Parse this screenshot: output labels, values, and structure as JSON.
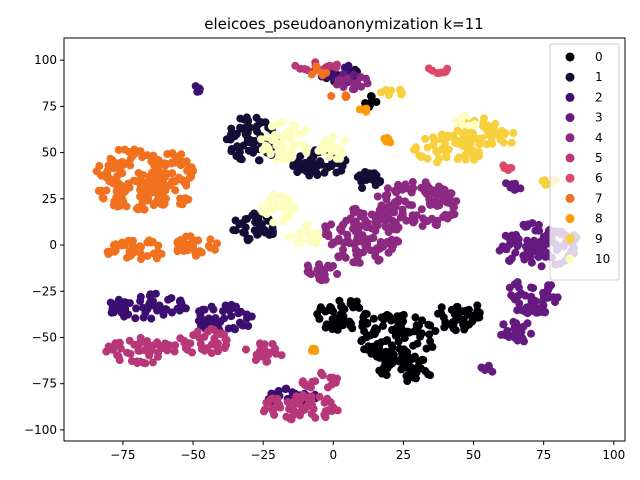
{
  "chart_data": {
    "type": "scatter",
    "title": "eleicoes_pseudoanonymization k=11",
    "xlabel": "",
    "ylabel": "",
    "xlim": [
      -96,
      104
    ],
    "ylim": [
      -106,
      112
    ],
    "xticks": [
      -75,
      -50,
      -25,
      0,
      25,
      50,
      75,
      100
    ],
    "yticks": [
      100,
      75,
      50,
      25,
      0,
      -25,
      -50,
      -75,
      -100
    ],
    "xtick_labels": [
      "−75",
      "−50",
      "−25",
      "0",
      "25",
      "50",
      "75",
      "100"
    ],
    "ytick_labels": [
      "100",
      "75",
      "50",
      "25",
      "0",
      "−25",
      "−50",
      "−75",
      "−100"
    ],
    "grid": false,
    "legend_position": "upper right",
    "series": [
      {
        "name": "0",
        "color": "#000004",
        "clusters": [
          [
            4,
            -38,
            10,
            9
          ],
          [
            23,
            -50,
            14,
            13
          ],
          [
            45,
            -38,
            8,
            9
          ],
          [
            26,
            -67,
            10,
            7
          ],
          [
            13,
            78,
            4,
            4
          ]
        ]
      },
      {
        "name": "1",
        "color": "#140e36",
        "clusters": [
          [
            -29,
            57,
            9,
            13
          ],
          [
            -28,
            10,
            8,
            8
          ],
          [
            -5,
            44,
            10,
            8
          ],
          [
            3,
            92,
            7,
            5
          ],
          [
            13,
            35,
            6,
            5
          ]
        ]
      },
      {
        "name": "2",
        "color": "#3b0f70",
        "clusters": [
          [
            -67,
            -33,
            15,
            7
          ],
          [
            -39,
            -40,
            11,
            8
          ],
          [
            -15,
            -82,
            9,
            5
          ],
          [
            2,
            93,
            7,
            5
          ],
          [
            -49,
            84,
            2,
            2
          ]
        ]
      },
      {
        "name": "3",
        "color": "#641a80",
        "clusters": [
          [
            73,
            0,
            15,
            12
          ],
          [
            71,
            -28,
            10,
            10
          ],
          [
            66,
            -47,
            8,
            6
          ],
          [
            55,
            -68,
            3,
            3
          ],
          [
            63,
            31,
            4,
            3
          ],
          [
            5,
            90,
            4,
            3
          ]
        ]
      },
      {
        "name": "4",
        "color": "#8c2981",
        "clusters": [
          [
            10,
            5,
            14,
            15
          ],
          [
            30,
            22,
            15,
            13
          ],
          [
            -5,
            -15,
            7,
            6
          ],
          [
            7,
            88,
            6,
            4
          ]
        ]
      },
      {
        "name": "5",
        "color": "#b73779",
        "clusters": [
          [
            -68,
            -57,
            13,
            7
          ],
          [
            -46,
            -52,
            9,
            7
          ],
          [
            -25,
            -58,
            7,
            6
          ],
          [
            -12,
            -88,
            14,
            7
          ],
          [
            -4,
            -74,
            7,
            5
          ],
          [
            -6,
            97,
            8,
            4
          ]
        ]
      },
      {
        "name": "6",
        "color": "#de4968",
        "clusters": [
          [
            37,
            94,
            5,
            3
          ],
          [
            62,
            42,
            2,
            2
          ]
        ]
      },
      {
        "name": "7",
        "color": "#f1711f",
        "clusters": [
          [
            -72,
            35,
            13,
            18
          ],
          [
            -57,
            35,
            9,
            15
          ],
          [
            -70,
            -3,
            11,
            6
          ],
          [
            -49,
            0,
            8,
            6
          ],
          [
            -6,
            94,
            4,
            3
          ],
          [
            2,
            80,
            3,
            2
          ]
        ]
      },
      {
        "name": "8",
        "color": "#fb9b06",
        "clusters": [
          [
            -7,
            -57,
            1,
            1
          ],
          [
            11,
            73,
            2,
            2
          ],
          [
            19,
            57,
            2,
            2
          ]
        ]
      },
      {
        "name": "9",
        "color": "#f7d13d",
        "clusters": [
          [
            42,
            52,
            14,
            8
          ],
          [
            51,
            63,
            8,
            6
          ],
          [
            60,
            58,
            6,
            4
          ],
          [
            21,
            83,
            4,
            3
          ],
          [
            77,
            35,
            3,
            3
          ]
        ]
      },
      {
        "name": "10",
        "color": "#fcfdbf",
        "clusters": [
          [
            -17,
            56,
            9,
            11
          ],
          [
            -20,
            20,
            7,
            8
          ],
          [
            -10,
            5,
            6,
            6
          ],
          [
            0,
            52,
            6,
            7
          ],
          [
            47,
            67,
            4,
            3
          ]
        ]
      }
    ]
  },
  "legend": {
    "labels": [
      "0",
      "1",
      "2",
      "3",
      "4",
      "5",
      "6",
      "7",
      "8",
      "9",
      "10"
    ],
    "colors": [
      "#000004",
      "#140e36",
      "#3b0f70",
      "#641a80",
      "#8c2981",
      "#b73779",
      "#de4968",
      "#f1711f",
      "#fb9b06",
      "#f7d13d",
      "#fcfdbf"
    ]
  }
}
